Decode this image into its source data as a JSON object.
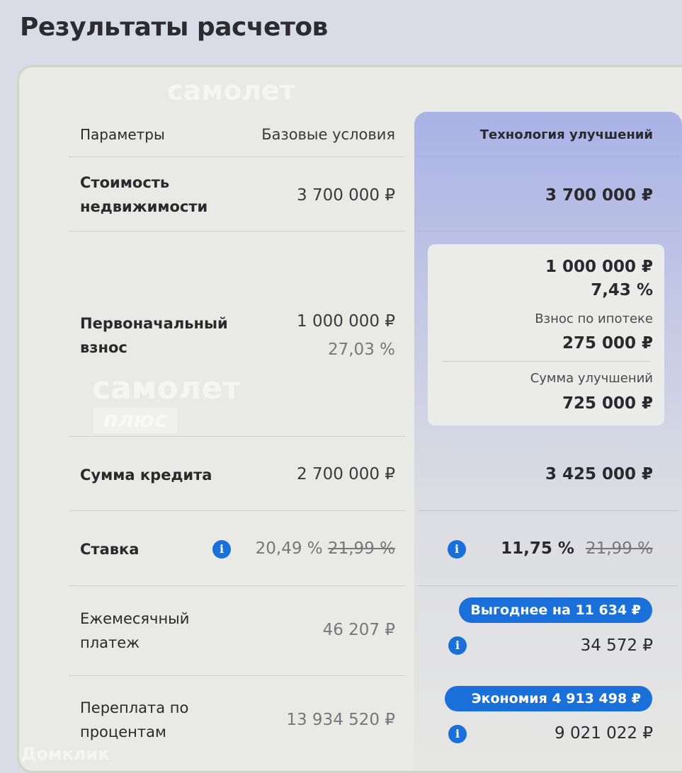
{
  "page": {
    "title": "Результаты расчетов"
  },
  "table": {
    "headers": {
      "params": "Параметры",
      "base": "Базовые условия",
      "tech": "Технология улучшений"
    },
    "rows": {
      "cost": {
        "label": "Стоимость недвижимости",
        "base": "3 700 000 ₽",
        "tech": "3 700 000 ₽"
      },
      "down": {
        "label": "Первоначальный взнос",
        "base_amount": "1 000 000 ₽",
        "base_percent": "27,03 %",
        "tech_amount": "1 000 000 ₽",
        "tech_percent": "7,43 %",
        "mortgage_label": "Взнос по ипотеке",
        "mortgage_value": "275 000 ₽",
        "improve_label": "Сумма улучшений",
        "improve_value": "725 000 ₽"
      },
      "credit": {
        "label": "Сумма кредита",
        "base": "2 700 000 ₽",
        "tech": "3 425 000 ₽"
      },
      "rate": {
        "label": "Ставка",
        "base": "20,49 %",
        "base_old": "21,99 %",
        "tech": "11,75 %",
        "tech_old": "21,99 %"
      },
      "monthly": {
        "label": "Ежемесячный платеж",
        "base": "46 207 ₽",
        "badge": "Выгоднее на 11 634 ₽",
        "tech": "34 572 ₽"
      },
      "overpay": {
        "label": "Переплата по процентам",
        "base": "13 934 520 ₽",
        "badge": "Экономия 4 913 498 ₽",
        "tech": "9 021 022 ₽"
      }
    }
  },
  "watermarks": {
    "brand1": "самолет",
    "brand2": "плюс",
    "brand3": "Домклик"
  },
  "colors": {
    "accent": "#1a6fd8"
  }
}
